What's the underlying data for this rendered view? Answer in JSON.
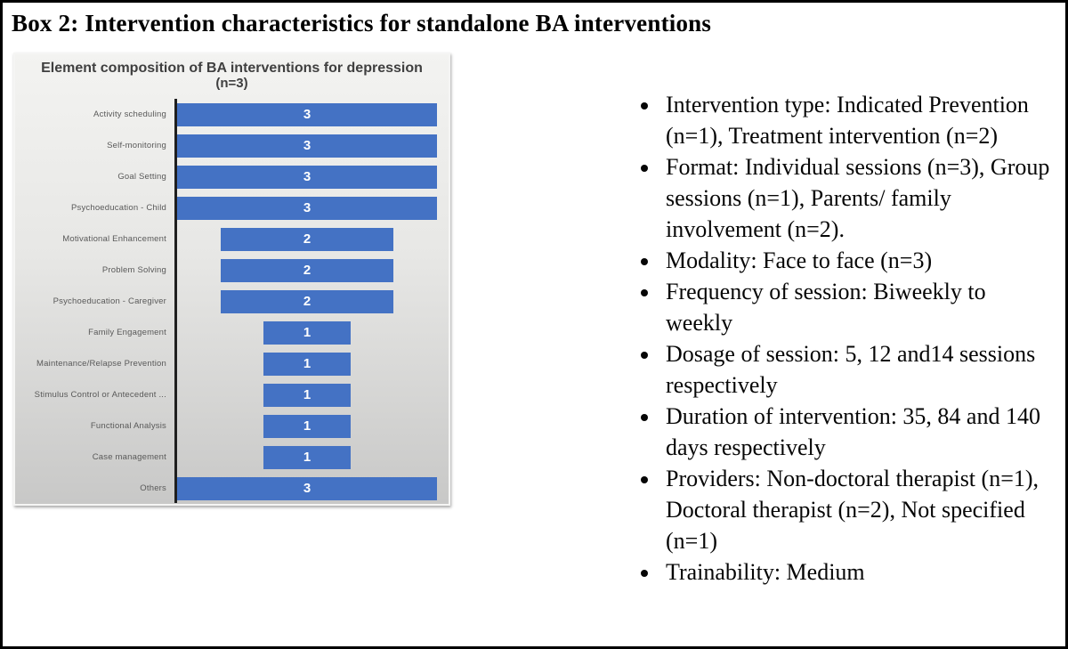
{
  "box": {
    "title": "Box 2: Intervention characteristics for standalone BA interventions"
  },
  "chart_data": {
    "type": "bar",
    "orientation": "horizontal",
    "alignment": "centered-funnel",
    "title": "Element composition of BA interventions for depression",
    "subtitle": "(n=3)",
    "categories": [
      "Activity scheduling",
      "Self-monitoring",
      "Goal Setting",
      "Psychoeducation - Child",
      "Motivational Enhancement",
      "Problem Solving",
      "Psychoeducation - Caregiver",
      "Family Engagement",
      "Maintenance/Relapse Prevention",
      "Stimulus Control or Antecedent ...",
      "Functional Analysis",
      "Case management",
      "Others"
    ],
    "values": [
      3,
      3,
      3,
      3,
      2,
      2,
      2,
      1,
      1,
      1,
      1,
      1,
      3
    ],
    "xlim": [
      0,
      3
    ],
    "data_labels": "inside-center",
    "grid": false,
    "legend": false,
    "colors": {
      "bar": "#4472c4",
      "bar_value_text": "#ffffff",
      "axis_line": "#1f1f1f",
      "title_text": "#3f3f3f",
      "category_text": "#595959"
    }
  },
  "bullets": {
    "items": [
      "Intervention type: Indicated Prevention (n=1), Treatment intervention (n=2)",
      "Format: Individual sessions (n=3), Group sessions (n=1), Parents/ family involvement (n=2).",
      "Modality: Face to face (n=3)",
      "Frequency of session: Biweekly to weekly",
      "Dosage of session: 5, 12 and14 sessions respectively",
      "Duration of intervention: 35, 84 and 140 days respectively",
      "Providers: Non-doctoral therapist (n=1), Doctoral therapist (n=2), Not specified (n=1)",
      "Trainability: Medium"
    ]
  }
}
